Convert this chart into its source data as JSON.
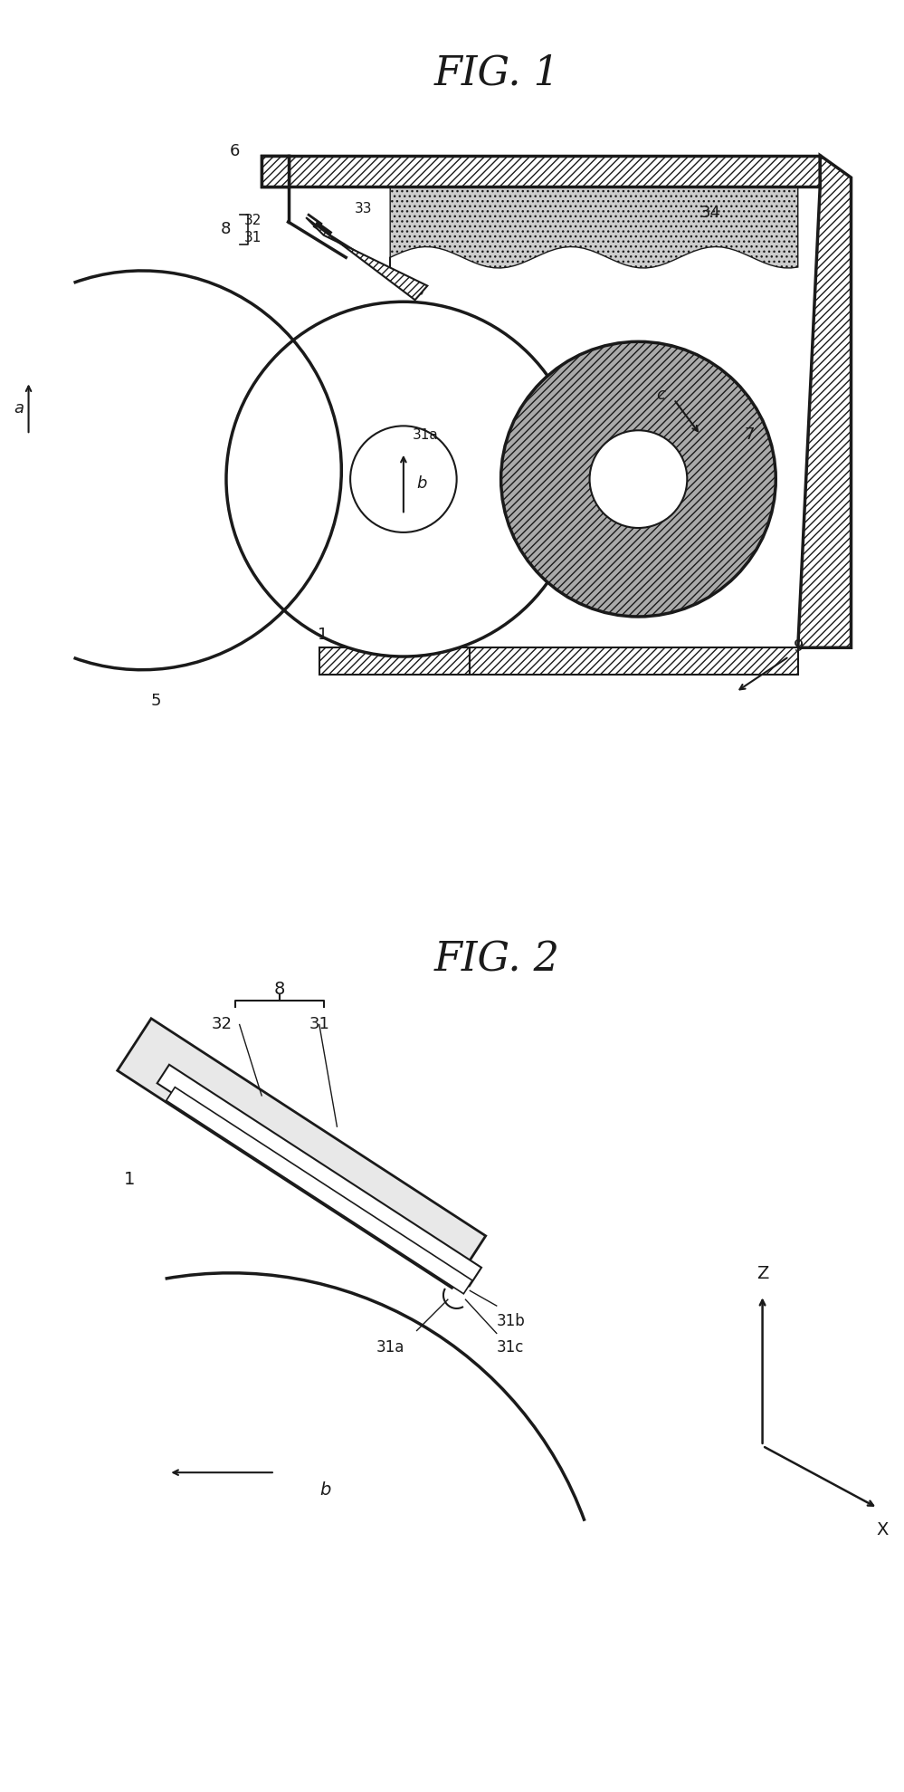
{
  "fig1_title": "FIG. 1",
  "fig2_title": "FIG. 2",
  "bg_color": "#ffffff",
  "line_color": "#1a1a1a",
  "hatch_color": "#1a1a1a",
  "fill_light": "#d0d0d0",
  "fill_medium": "#b0b0b0"
}
